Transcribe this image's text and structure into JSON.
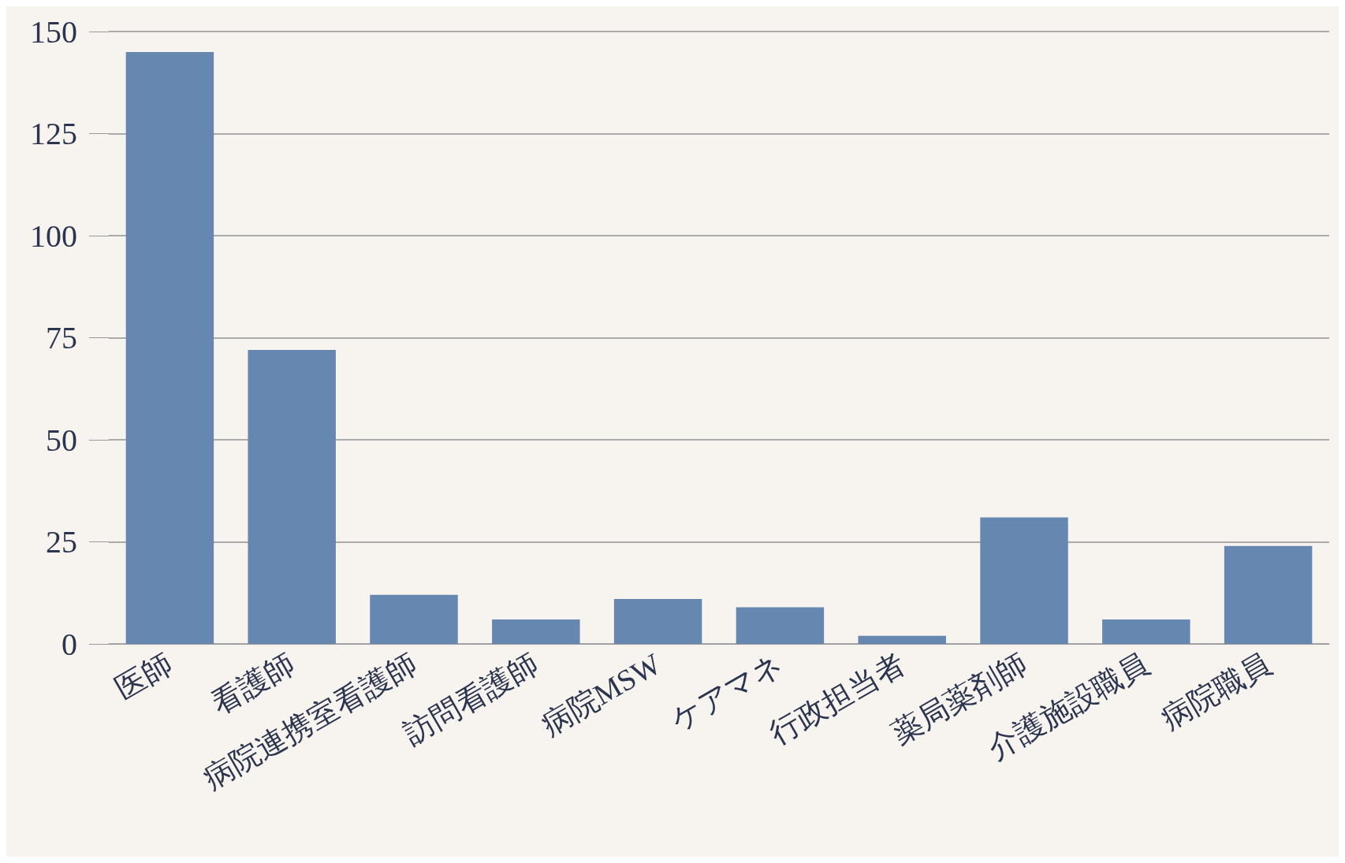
{
  "chart_data": {
    "type": "bar",
    "categories": [
      "医師",
      "看護師",
      "病院連携室看護師",
      "訪問看護師",
      "病院MSW",
      "ケアマネ",
      "行政担当者",
      "薬局薬剤師",
      "介護施設職員",
      "病院職員"
    ],
    "values": [
      145,
      72,
      12,
      6,
      11,
      9,
      2,
      31,
      6,
      24
    ],
    "color": "#6688b0",
    "ylim": [
      0,
      150
    ],
    "yticks": [
      0,
      25,
      50,
      75,
      100,
      125,
      150
    ],
    "grid": "y"
  }
}
